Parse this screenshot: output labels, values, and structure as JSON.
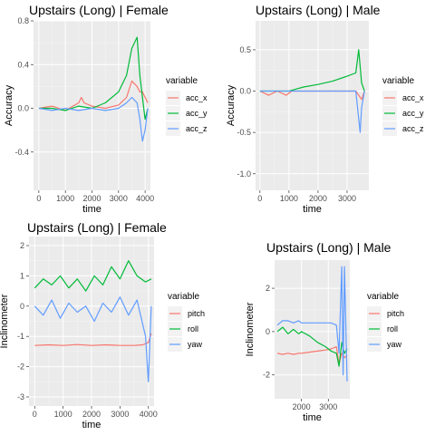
{
  "chart_data": [
    {
      "type": "line",
      "title": "Upstairs (Long) | Female",
      "xlabel": "time",
      "ylabel": "Accuracy",
      "xlim": [
        -200,
        4200
      ],
      "ylim": [
        -0.75,
        0.8
      ],
      "xticks": [
        0,
        1000,
        2000,
        3000,
        4000
      ],
      "xtick_labels": [
        "0",
        "1000",
        "2000",
        "3000",
        "4000"
      ],
      "yticks": [
        -0.4,
        0.0,
        0.4,
        0.8
      ],
      "ytick_labels": [
        "-0.4",
        "0.0",
        "0.4",
        "0.8"
      ],
      "grid": true,
      "legend": {
        "title": "variable",
        "position": "right"
      },
      "series": [
        {
          "name": "acc_x",
          "color": "#F8766D",
          "x": [
            0,
            500,
            1000,
            1500,
            1600,
            1700,
            2000,
            2500,
            3000,
            3300,
            3500,
            3700,
            3800,
            3900,
            4000,
            4100
          ],
          "y": [
            0.0,
            0.02,
            -0.02,
            0.05,
            0.1,
            0.05,
            0.02,
            0.0,
            0.03,
            0.1,
            0.25,
            0.2,
            0.15,
            0.15,
            0.1,
            0.05
          ]
        },
        {
          "name": "acc_y",
          "color": "#00BA38",
          "x": [
            0,
            500,
            1000,
            1500,
            2000,
            2500,
            3000,
            3300,
            3500,
            3700,
            3800,
            3900,
            4000,
            4100
          ],
          "y": [
            0.0,
            0.0,
            -0.02,
            0.02,
            0.0,
            0.05,
            0.15,
            0.3,
            0.55,
            0.65,
            0.3,
            0.1,
            -0.1,
            0.0
          ]
        },
        {
          "name": "acc_z",
          "color": "#619CFF",
          "x": [
            0,
            500,
            1000,
            1500,
            2000,
            2500,
            3000,
            3300,
            3500,
            3700,
            3800,
            3900,
            4000,
            4100
          ],
          "y": [
            0.0,
            -0.02,
            0.0,
            -0.02,
            0.0,
            -0.02,
            0.0,
            0.05,
            0.1,
            0.05,
            -0.1,
            -0.3,
            -0.2,
            0.0
          ]
        }
      ]
    },
    {
      "type": "line",
      "title": "Upstairs (Long) | Male",
      "xlabel": "time",
      "ylabel": "Accuracy",
      "xlim": [
        -150,
        3750
      ],
      "ylim": [
        -1.2,
        0.85
      ],
      "xticks": [
        0,
        1000,
        2000,
        3000
      ],
      "xtick_labels": [
        "0",
        "1000",
        "2000",
        "3000"
      ],
      "yticks": [
        -1.0,
        -0.5,
        0.0,
        0.5
      ],
      "ytick_labels": [
        "-1.0",
        "-0.5",
        "0.0",
        "0.5"
      ],
      "grid": true,
      "legend": {
        "title": "variable",
        "position": "right"
      },
      "series": [
        {
          "name": "acc_x",
          "color": "#F8766D",
          "x": [
            0,
            300,
            600,
            900,
            1100,
            1300,
            1600,
            2000,
            2500,
            3000,
            3300,
            3500,
            3600
          ],
          "y": [
            0.0,
            -0.05,
            0.0,
            -0.05,
            0.0,
            0.0,
            0.0,
            0.0,
            0.0,
            0.0,
            0.0,
            -0.1,
            0.0
          ]
        },
        {
          "name": "acc_y",
          "color": "#00BA38",
          "x": [
            0,
            500,
            1000,
            1200,
            1500,
            2000,
            2500,
            3000,
            3300,
            3400,
            3500,
            3600
          ],
          "y": [
            0.0,
            0.0,
            0.0,
            0.02,
            0.05,
            0.08,
            0.12,
            0.18,
            0.22,
            0.5,
            0.1,
            0.0
          ]
        },
        {
          "name": "acc_z",
          "color": "#619CFF",
          "x": [
            0,
            500,
            1000,
            1200,
            1500,
            2000,
            2500,
            3000,
            3300,
            3450,
            3500,
            3600
          ],
          "y": [
            0.0,
            0.0,
            0.0,
            0.0,
            0.0,
            0.0,
            0.0,
            0.0,
            0.0,
            -0.5,
            -0.2,
            0.0
          ]
        }
      ]
    },
    {
      "type": "line",
      "title": "Upstairs (Long) | Female",
      "xlabel": "time",
      "ylabel": "Inclinometer",
      "xlim": [
        -200,
        4200
      ],
      "ylim": [
        -3.3,
        2.3
      ],
      "xticks": [
        0,
        1000,
        2000,
        3000,
        4000
      ],
      "xtick_labels": [
        "0",
        "1000",
        "2000",
        "3000",
        "4000"
      ],
      "yticks": [
        -3,
        -2,
        -1,
        0,
        1,
        2
      ],
      "ytick_labels": [
        "-3",
        "-2",
        "-1",
        "0",
        "1",
        "2"
      ],
      "grid": true,
      "legend": {
        "title": "variable",
        "position": "right"
      },
      "series": [
        {
          "name": "pitch",
          "color": "#F8766D",
          "x": [
            0,
            500,
            1000,
            1500,
            2000,
            2500,
            3000,
            3500,
            3800,
            4000,
            4100
          ],
          "y": [
            -1.3,
            -1.28,
            -1.3,
            -1.27,
            -1.3,
            -1.28,
            -1.3,
            -1.3,
            -1.28,
            -1.2,
            -0.9
          ]
        },
        {
          "name": "roll",
          "color": "#00BA38",
          "x": [
            0,
            300,
            600,
            900,
            1200,
            1500,
            1800,
            2100,
            2400,
            2700,
            3000,
            3300,
            3600,
            3900,
            4100
          ],
          "y": [
            0.6,
            0.9,
            0.7,
            1.0,
            0.6,
            0.9,
            0.5,
            1.0,
            0.7,
            1.3,
            0.9,
            1.5,
            1.0,
            0.8,
            0.9
          ]
        },
        {
          "name": "yaw",
          "color": "#619CFF",
          "x": [
            0,
            300,
            600,
            900,
            1200,
            1500,
            1800,
            2100,
            2400,
            2700,
            3000,
            3300,
            3600,
            3900,
            4000,
            4100
          ],
          "y": [
            0.0,
            -0.3,
            0.2,
            -0.4,
            0.1,
            -0.2,
            0.0,
            -0.5,
            0.1,
            -0.2,
            0.3,
            -0.3,
            0.2,
            -1.0,
            -2.5,
            0.0
          ]
        }
      ]
    },
    {
      "type": "line",
      "title": "Upstairs (Long) | Male",
      "xlabel": "time",
      "ylabel": "Inclinometer",
      "xlim": [
        1000,
        3800
      ],
      "ylim": [
        -3.1,
        3.3
      ],
      "xticks": [
        2000,
        3000
      ],
      "xtick_labels": [
        "2000",
        "3000"
      ],
      "yticks": [
        -2,
        0,
        2
      ],
      "ytick_labels": [
        "-2",
        "0",
        "2"
      ],
      "grid": true,
      "legend": {
        "title": "variable",
        "position": "right"
      },
      "series": [
        {
          "name": "pitch",
          "color": "#F8766D",
          "x": [
            1100,
            1300,
            1500,
            1700,
            1900,
            2000,
            2300,
            2600,
            2900,
            3100,
            3300,
            3400,
            3500,
            3600,
            3700
          ],
          "y": [
            -1.0,
            -1.05,
            -1.0,
            -1.05,
            -1.0,
            -1.0,
            -0.95,
            -0.9,
            -0.85,
            -0.8,
            -0.7,
            -1.5,
            -1.0,
            -1.2,
            -1.1
          ]
        },
        {
          "name": "roll",
          "color": "#00BA38",
          "x": [
            1100,
            1300,
            1500,
            1700,
            1900,
            2000,
            2300,
            2600,
            2900,
            3100,
            3300,
            3400,
            3500,
            3600,
            3700
          ],
          "y": [
            0.0,
            0.2,
            -0.1,
            0.1,
            -0.1,
            0.0,
            -0.2,
            -0.5,
            -0.7,
            -0.9,
            -1.0,
            -1.6,
            -0.5,
            -1.0,
            -0.8
          ]
        },
        {
          "name": "yaw",
          "color": "#619CFF",
          "x": [
            1100,
            1300,
            1500,
            1700,
            1900,
            2000,
            2300,
            2600,
            2900,
            3100,
            3300,
            3400,
            3500,
            3550,
            3600,
            3700
          ],
          "y": [
            0.3,
            0.5,
            0.5,
            0.4,
            0.5,
            0.4,
            0.4,
            0.4,
            0.4,
            0.4,
            0.3,
            -1.0,
            3.0,
            -2.0,
            3.0,
            -2.3
          ]
        }
      ]
    }
  ]
}
